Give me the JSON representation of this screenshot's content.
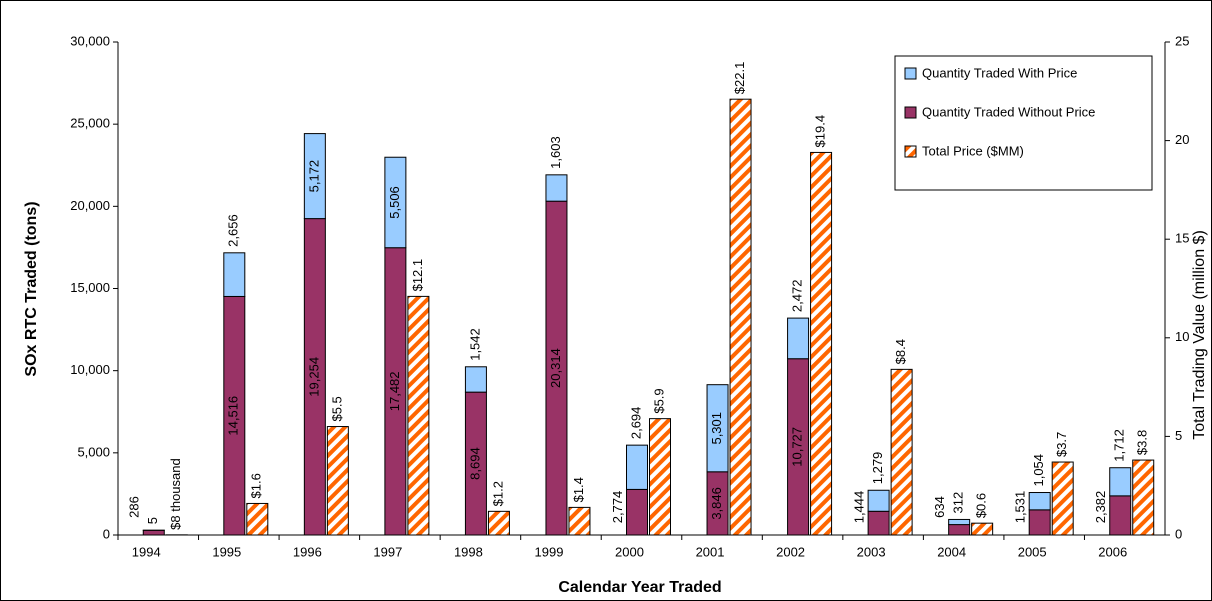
{
  "chart_data": {
    "type": "bar",
    "stacked": true,
    "x_label": "Calendar Year Traded",
    "y_label": "SOx RTC Traded (tons)",
    "y2_label": "Total Trading Value (million $)",
    "categories": [
      "1994",
      "1995",
      "1996",
      "1997",
      "1998",
      "1999",
      "2000",
      "2001",
      "2002",
      "2003",
      "2004",
      "2005",
      "2006"
    ],
    "series": [
      {
        "name": "Quantity Traded Without Price",
        "color": "#993366",
        "axis": "y",
        "stack": "qty",
        "values": [
          286,
          14516,
          19254,
          17482,
          8694,
          20314,
          2774,
          3846,
          10727,
          1444,
          634,
          1531,
          2382
        ],
        "value_labels": [
          "286",
          "14,516",
          "19,254",
          "17,482",
          "8,694",
          "20,314",
          "2,774",
          "3,846",
          "10,727",
          "1,444",
          "634",
          "1,531",
          "2,382"
        ]
      },
      {
        "name": "Quantity Traded With Price",
        "color": "#99ccff",
        "axis": "y",
        "stack": "qty",
        "values": [
          5,
          2656,
          5172,
          5506,
          1542,
          1603,
          2694,
          5301,
          2472,
          1279,
          312,
          1054,
          1712
        ],
        "value_labels": [
          "5",
          "2,656",
          "5,172",
          "5,506",
          "1,542",
          "1,603",
          "2,694",
          "5,301",
          "2,472",
          "1,279",
          "312",
          "1,054",
          "1,712"
        ]
      },
      {
        "name": "Total Price ($MM)",
        "color": "#ff6600",
        "axis": "y2",
        "stack": "price",
        "values": [
          0.008,
          1.6,
          5.5,
          12.1,
          1.2,
          1.4,
          5.9,
          22.1,
          19.4,
          8.4,
          0.6,
          3.7,
          3.8
        ],
        "value_labels": [
          "$8 thousand",
          "$1.6",
          "$5.5",
          "$12.1",
          "$1.2",
          "$1.4",
          "$5.9",
          "$22.1",
          "$19.4",
          "$8.4",
          "$0.6",
          "$3.7",
          "$3.8"
        ]
      }
    ],
    "legend_order": [
      1,
      0,
      2
    ],
    "legend_position": "upper right",
    "ylim": [
      0,
      30000
    ],
    "yticks": [
      0,
      {
        "value": 5000,
        "label": "5,000"
      },
      {
        "value": 10000,
        "label": "10,000"
      },
      {
        "value": 15000,
        "label": "15,000"
      },
      {
        "value": 20000,
        "label": "20,000"
      },
      {
        "value": 25000,
        "label": "25,000"
      },
      {
        "value": 30000,
        "label": "30,000"
      }
    ],
    "y2lim": [
      0,
      25
    ],
    "y2ticks": [
      0,
      5,
      10,
      15,
      20,
      25
    ]
  }
}
